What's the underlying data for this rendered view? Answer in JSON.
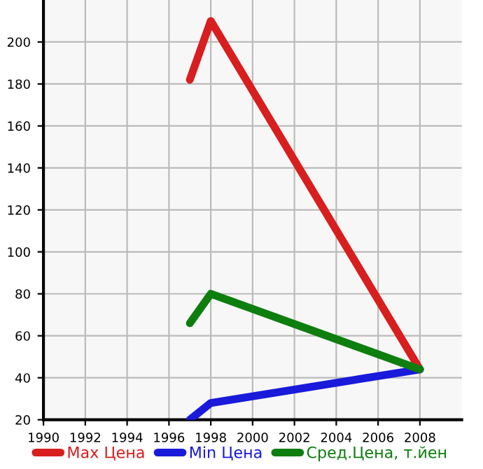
{
  "chart_data": {
    "type": "line",
    "x": [
      1997,
      1998,
      2008
    ],
    "series": [
      {
        "name": "Max Цена",
        "color": "#d81e1e",
        "values": [
          182,
          210,
          44
        ]
      },
      {
        "name": "Min Цена",
        "color": "#1a1adb",
        "values": [
          20,
          28,
          44
        ]
      },
      {
        "name": "Сред.Цена, т.йен",
        "color": "#0e7e0e",
        "values": [
          66,
          80,
          44
        ]
      }
    ],
    "xlim": [
      1990,
      2010
    ],
    "xticks": [
      1990,
      1992,
      1994,
      1996,
      1998,
      2000,
      2002,
      2004,
      2006,
      2008
    ],
    "ylim": [
      20,
      220
    ],
    "yticks": [
      20,
      40,
      60,
      80,
      100,
      120,
      140,
      160,
      180,
      200
    ],
    "grid": true,
    "legend": "bottom",
    "marker": "none",
    "line_style": "solid"
  }
}
